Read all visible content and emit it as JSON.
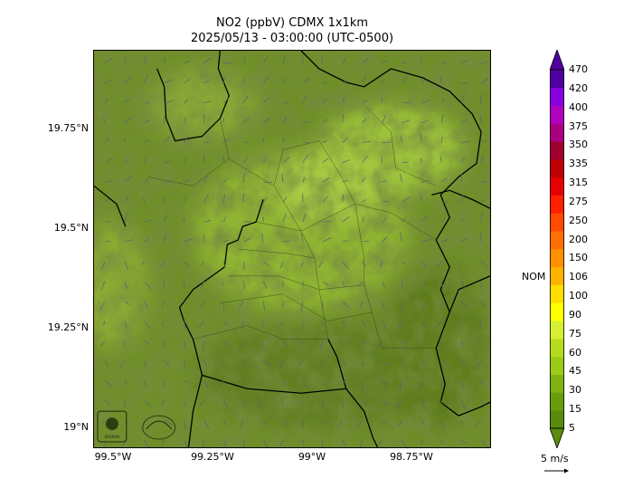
{
  "title": [
    "NO2 (ppbV) CDMX 1x1km",
    "2025/05/13 - 03:00:00 (UTC-0500)"
  ],
  "map": {
    "x_ticks": [
      "99.5°W",
      "99.25°W",
      "99°W",
      "98.75°W"
    ],
    "y_ticks": [
      "19.75°N",
      "19.5°N",
      "19.25°N",
      "19°N"
    ],
    "x_values": [
      -99.5,
      -99.25,
      -99.0,
      -98.75
    ],
    "y_values": [
      19.75,
      19.5,
      19.25,
      19.0
    ],
    "lon_range": [
      -99.55,
      -98.55
    ],
    "lat_range": [
      18.95,
      19.95
    ]
  },
  "colorbar": {
    "levels": [
      "5",
      "15",
      "30",
      "45",
      "60",
      "75",
      "90",
      "100",
      "106",
      "150",
      "200",
      "250",
      "275",
      "315",
      "335",
      "350",
      "375",
      "400",
      "420",
      "470"
    ],
    "colors": [
      "#5a8b0a",
      "#6a9d0c",
      "#80b311",
      "#9acb16",
      "#b5dd1e",
      "#d6f030",
      "#ffff00",
      "#ffdd00",
      "#ffb300",
      "#ff9100",
      "#ff7000",
      "#ff4a00",
      "#ff2000",
      "#e60000",
      "#c00000",
      "#a00030",
      "#aa0080",
      "#b000c0",
      "#8800e0",
      "#5000a0"
    ],
    "nom_label": "NOM",
    "nom_level": 106
  },
  "wind": {
    "scale_label": "5 m/s"
  },
  "logos": [
    {
      "name": "sedema-logo",
      "text": "SEDEMA"
    },
    {
      "name": "air-quality-logo",
      "text": ""
    }
  ]
}
